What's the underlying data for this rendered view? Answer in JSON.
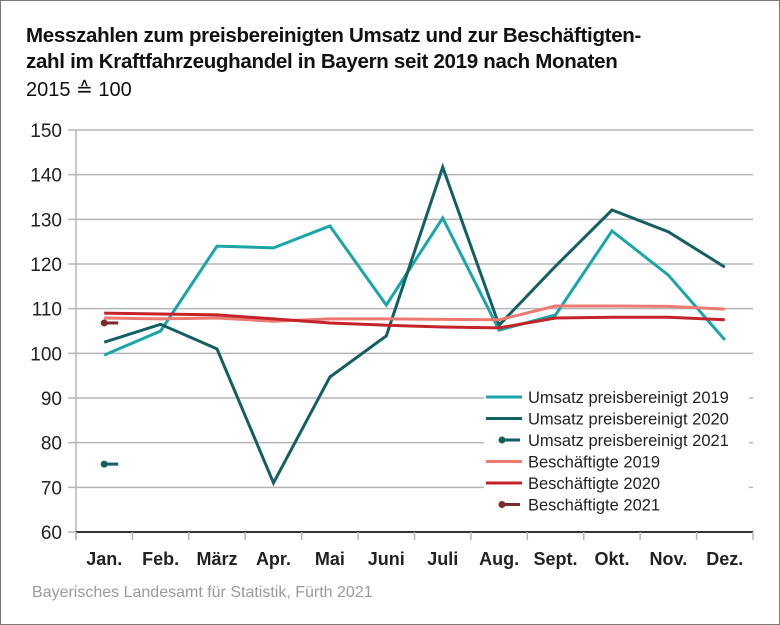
{
  "title": "Messzahlen zum preisbereinigten Umsatz und zur Beschäftigten-zahl im Kraftfahrzeughandel in Bayern seit 2019 nach Monaten",
  "title_line1": "Messzahlen zum preisbereinigten Umsatz und zur Beschäftigten-",
  "title_line2": "zahl im Kraftfahrzeughandel in Bayern seit 2019 nach Monaten",
  "subtitle": "2015 ≙ 100",
  "source": "Bayerisches Landesamt für Statistik, Fürth 2021",
  "colors": {
    "umsatz_2019": "#1aa6a8",
    "umsatz_2020": "#145f63",
    "umsatz_2021": "#145f63",
    "besch_2019": "#ec7a72",
    "besch_2020": "#c5232a",
    "besch_2021": "#7a2a2a",
    "grid": "#b5b5b5",
    "axis": "#333333"
  },
  "chart_data": {
    "type": "line",
    "title": "Messzahlen zum preisbereinigten Umsatz und zur Beschäftigtenzahl im Kraftfahrzeughandel in Bayern seit 2019 nach Monaten",
    "subtitle": "2015 ≙ 100",
    "xlabel": "",
    "ylabel": "",
    "categories": [
      "Jan.",
      "Feb.",
      "März",
      "Apr.",
      "Mai",
      "Juni",
      "Juli",
      "Aug.",
      "Sept.",
      "Okt.",
      "Nov.",
      "Dez."
    ],
    "ylim": [
      60,
      150
    ],
    "yticks": [
      60,
      70,
      80,
      90,
      100,
      110,
      120,
      130,
      140,
      150
    ],
    "grid": true,
    "legend_position": "bottom-right",
    "series": [
      {
        "name": "Umsatz preisbereinigt 2019",
        "key": "umsatz_2019",
        "marker": false,
        "values": [
          99.6,
          105.0,
          124.0,
          123.6,
          128.5,
          110.8,
          130.3,
          105.2,
          108.6,
          127.4,
          117.5,
          103.0
        ]
      },
      {
        "name": "Umsatz preisbereinigt 2020",
        "key": "umsatz_2020",
        "marker": false,
        "values": [
          102.5,
          106.5,
          101.0,
          71.0,
          94.7,
          103.9,
          141.7,
          106.3,
          119.5,
          132.1,
          127.2,
          119.3
        ]
      },
      {
        "name": "Umsatz preisbereinigt 2021",
        "key": "umsatz_2021",
        "marker": true,
        "values": [
          75.2,
          null,
          null,
          null,
          null,
          null,
          null,
          null,
          null,
          null,
          null,
          null
        ]
      },
      {
        "name": "Beschäftigte 2019",
        "key": "besch_2019",
        "marker": false,
        "values": [
          107.9,
          107.7,
          107.9,
          107.2,
          107.7,
          107.7,
          107.6,
          107.5,
          110.6,
          110.6,
          110.5,
          109.9
        ]
      },
      {
        "name": "Beschäftigte 2020",
        "key": "besch_2020",
        "marker": false,
        "values": [
          109.0,
          108.8,
          108.6,
          107.7,
          106.8,
          106.3,
          105.9,
          105.7,
          107.9,
          108.1,
          108.1,
          107.5
        ]
      },
      {
        "name": "Beschäftigte 2021",
        "key": "besch_2021",
        "marker": true,
        "values": [
          106.8,
          null,
          null,
          null,
          null,
          null,
          null,
          null,
          null,
          null,
          null,
          null
        ]
      }
    ]
  }
}
